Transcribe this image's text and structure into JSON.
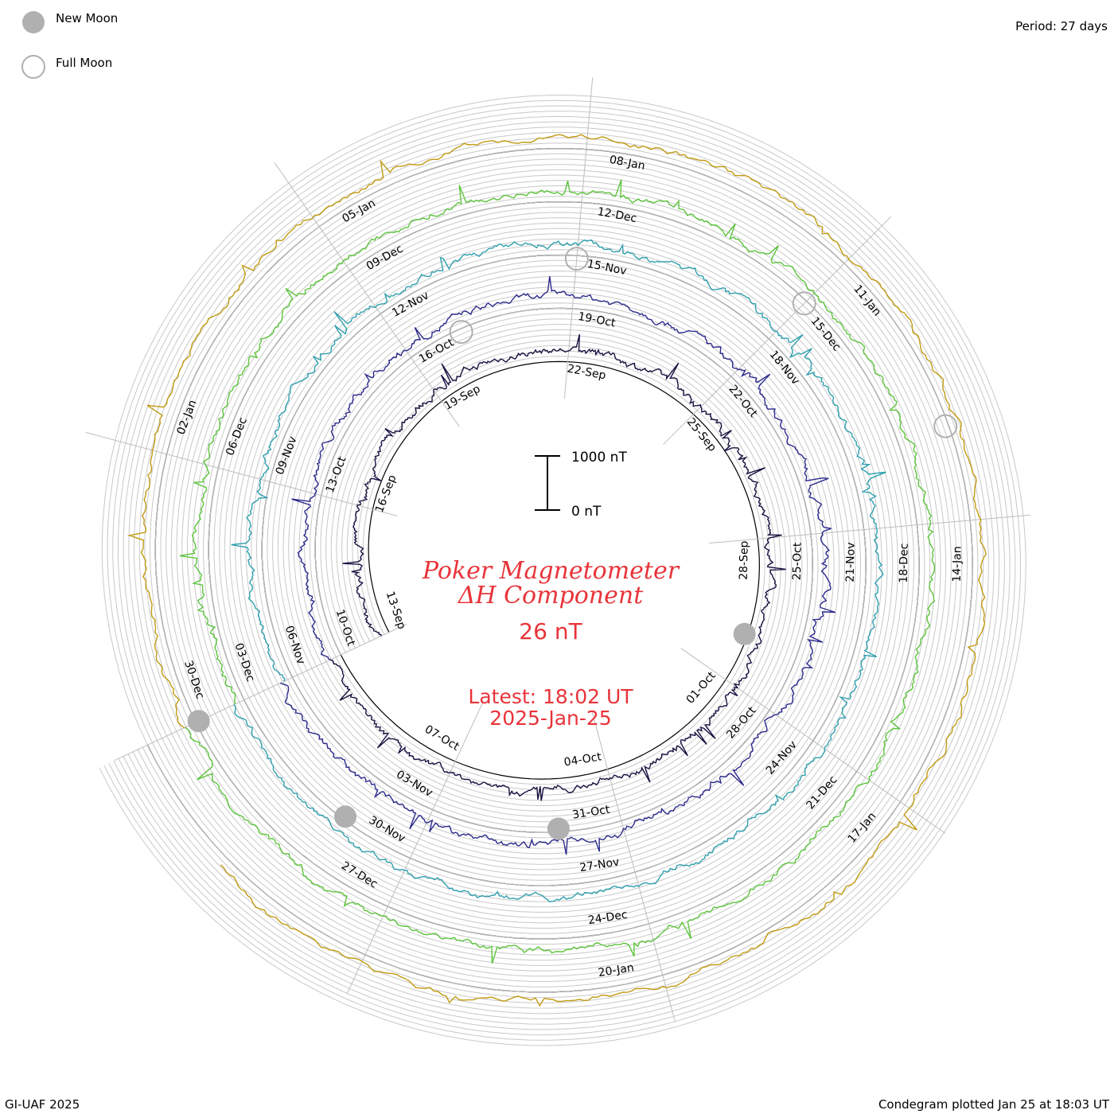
{
  "legend": {
    "new_moon_label": "New Moon",
    "full_moon_label": "Full Moon",
    "new_moon_color": "#b0b0b0",
    "full_moon_color": "#b0b0b0"
  },
  "period_label": "Period: 27 days",
  "footer": {
    "left": "GI-UAF 2025",
    "right": "Condegram plotted Jan 25 at 18:03 UT"
  },
  "center": {
    "title_line1": "Poker Magnetometer",
    "title_line2": "ΔH Component",
    "value": "26 nT",
    "latest_line1": "Latest: 18:02 UT",
    "latest_line2": "2025-Jan-25"
  },
  "scale_bar": {
    "top_label": "1000 nT",
    "bottom_label": "0 nT"
  },
  "chart_data": {
    "type": "line",
    "title": "Poker Magnetometer ΔH Component",
    "period_days": 27,
    "latest_value_nT": 26,
    "latest_time": "18:02 UT 2025-Jan-25",
    "scale_nT": [
      0,
      1000
    ],
    "rotations": [
      {
        "start": "13-Sep",
        "color": "#1a1040",
        "date_labels": [
          "13-Sep",
          "16-Sep",
          "19-Sep",
          "22-Sep",
          "25-Sep",
          "28-Sep",
          "01-Oct",
          "04-Oct",
          "07-Oct"
        ]
      },
      {
        "start": "10-Oct",
        "color": "#2b2a8c",
        "date_labels": [
          "10-Oct",
          "13-Oct",
          "16-Oct",
          "19-Oct",
          "22-Oct",
          "25-Oct",
          "28-Oct",
          "31-Oct",
          "03-Nov"
        ]
      },
      {
        "start": "06-Nov",
        "color": "#2e9fae",
        "date_labels": [
          "06-Nov",
          "09-Nov",
          "12-Nov",
          "15-Nov",
          "18-Nov",
          "21-Nov",
          "24-Nov",
          "27-Nov",
          "30-Nov"
        ]
      },
      {
        "start": "03-Dec",
        "color": "#5cc43c",
        "date_labels": [
          "03-Dec",
          "06-Dec",
          "09-Dec",
          "12-Dec",
          "15-Dec",
          "18-Dec",
          "21-Dec",
          "24-Dec",
          "27-Dec"
        ]
      },
      {
        "start": "30-Dec",
        "color": "#c29a12",
        "date_labels": [
          "30-Dec",
          "02-Jan",
          "05-Jan",
          "08-Jan",
          "11-Jan",
          "14-Jan",
          "17-Jan",
          "20-Jan"
        ]
      }
    ],
    "moon_phases": {
      "new_moon": [
        "30-Sep",
        "01-Nov",
        "01-Dec",
        "30-Dec"
      ],
      "full_moon": [
        "17-Oct",
        "15-Nov",
        "15-Dec",
        "13-Jan"
      ]
    }
  }
}
